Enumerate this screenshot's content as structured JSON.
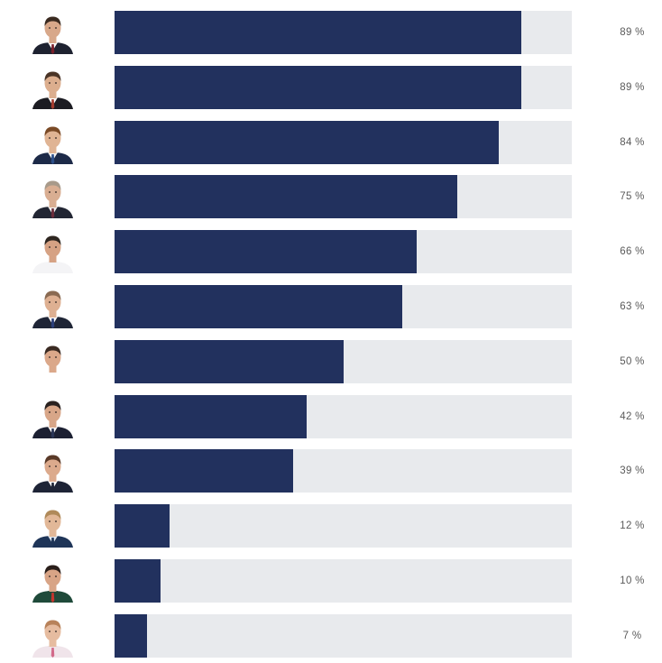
{
  "colors": {
    "bar_fill": "#22315e",
    "bar_track": "#e8eaed",
    "label_text": "#5a5a5a"
  },
  "chart_data": {
    "type": "bar",
    "orientation": "horizontal",
    "xlim": [
      0,
      100
    ],
    "grid": false,
    "legend": "none",
    "rows": [
      {
        "value": 89,
        "label": "89 %",
        "portrait": {
          "skin": "#d8a88a",
          "hair": "#3a2a20",
          "suit": "#1e2230",
          "shirt": "#ffffff",
          "tie": "#7a1f2a"
        }
      },
      {
        "value": 89,
        "label": "89 %",
        "portrait": {
          "skin": "#dcae8e",
          "hair": "#4a3426",
          "suit": "#1c1c22",
          "shirt": "#ffffff",
          "tie": "#a33b2e"
        }
      },
      {
        "value": 84,
        "label": "84 %",
        "portrait": {
          "skin": "#e0b494",
          "hair": "#7a4a26",
          "suit": "#1d2a48",
          "shirt": "#f4f4f4",
          "tie": "#2d4f8a"
        }
      },
      {
        "value": 75,
        "label": "75 %",
        "portrait": {
          "skin": "#d9ae92",
          "hair": "#a89a8a",
          "suit": "#222633",
          "shirt": "#f2f2f2",
          "tie": "#6b2c3a"
        }
      },
      {
        "value": 66,
        "label": "66 %",
        "portrait": {
          "skin": "#d6a284",
          "hair": "#2e2620",
          "suit": "#f4f4f6",
          "shirt": "#f4f4f6",
          "tie": "#f4f4f6"
        }
      },
      {
        "value": 63,
        "label": "63 %",
        "portrait": {
          "skin": "#deb092",
          "hair": "#8a6a52",
          "suit": "#1f2536",
          "shirt": "#ffffff",
          "tie": "#2b3f7a"
        }
      },
      {
        "value": 50,
        "label": "50 %",
        "portrait": {
          "skin": "#dba88a",
          "hair": "#3a2a22",
          "suit": "#ffffff",
          "shirt": "#ffffff",
          "tie": "#ffffff"
        }
      },
      {
        "value": 42,
        "label": "42 %",
        "portrait": {
          "skin": "#d8a688",
          "hair": "#2a2220",
          "suit": "#1c2032",
          "shirt": "#ffffff",
          "tie": "#2a3556"
        }
      },
      {
        "value": 39,
        "label": "39 %",
        "portrait": {
          "skin": "#dcaa8c",
          "hair": "#5a3a28",
          "suit": "#1e2436",
          "shirt": "#ffffff",
          "tie": "#1e2436"
        }
      },
      {
        "value": 12,
        "label": "12 %",
        "portrait": {
          "skin": "#e2b898",
          "hair": "#b08a5a",
          "suit": "#1f3558",
          "shirt": "#dfe8f2",
          "tie": "#1f3558"
        }
      },
      {
        "value": 10,
        "label": "10 %",
        "portrait": {
          "skin": "#d8a486",
          "hair": "#2a1e1a",
          "suit": "#1f4a3a",
          "shirt": "#1f4a3a",
          "tie": "#c4352e"
        }
      },
      {
        "value": 7,
        "label": "7 %",
        "portrait": {
          "skin": "#e6bca0",
          "hair": "#b8825a",
          "suit": "#f0e4ea",
          "shirt": "#f0e4ea",
          "tie": "#d26a8a"
        }
      }
    ]
  }
}
